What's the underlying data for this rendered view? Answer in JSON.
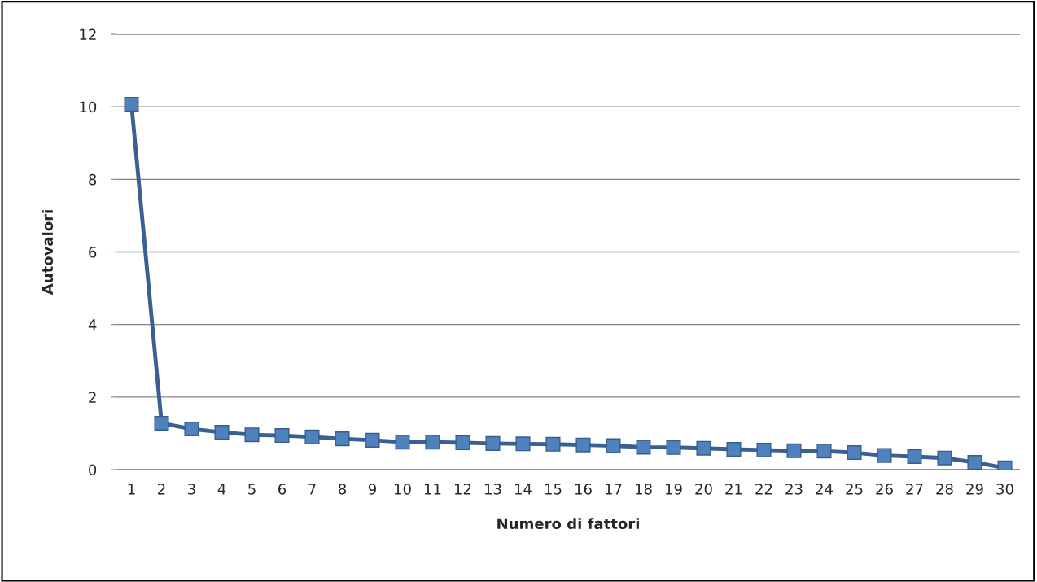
{
  "chart_data": {
    "type": "line",
    "xlabel": "Numero di fattori",
    "ylabel": "Autovalori",
    "categories": [
      "1",
      "2",
      "3",
      "4",
      "5",
      "6",
      "7",
      "8",
      "9",
      "10",
      "11",
      "12",
      "13",
      "14",
      "15",
      "16",
      "17",
      "18",
      "19",
      "20",
      "21",
      "22",
      "23",
      "24",
      "25",
      "26",
      "27",
      "28",
      "29",
      "30"
    ],
    "series": [
      {
        "color": "#4f81bd",
        "values": [
          10.07,
          1.28,
          1.12,
          1.03,
          0.96,
          0.94,
          0.9,
          0.85,
          0.81,
          0.76,
          0.76,
          0.74,
          0.72,
          0.71,
          0.7,
          0.68,
          0.66,
          0.62,
          0.61,
          0.59,
          0.56,
          0.54,
          0.52,
          0.51,
          0.47,
          0.39,
          0.36,
          0.32,
          0.2,
          0.05
        ]
      }
    ],
    "ylim": [
      0,
      12
    ],
    "yticks": [
      0,
      2,
      4,
      6,
      8,
      10,
      12
    ],
    "grid": "y",
    "marker": "square",
    "line_style": "solid"
  }
}
